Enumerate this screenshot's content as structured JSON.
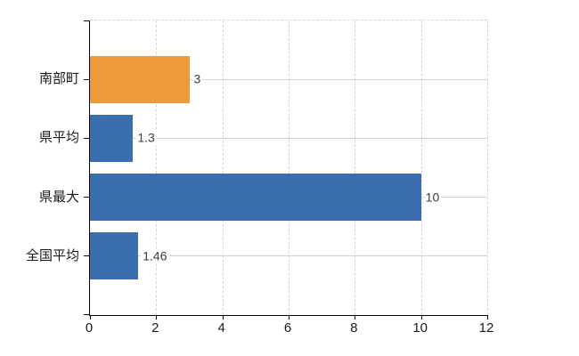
{
  "chart_data": {
    "type": "bar",
    "orientation": "horizontal",
    "title": "",
    "xlabel": "",
    "ylabel": "",
    "categories": [
      "南部町",
      "県平均",
      "県最大",
      "全国平均"
    ],
    "values": [
      3,
      1.3,
      10,
      1.46
    ],
    "value_labels": [
      "3",
      "1.3",
      "10",
      "1.46"
    ],
    "bar_colors": [
      "#EC9A3C",
      "#3B6EAE",
      "#3B6EAE",
      "#3B6EAE"
    ],
    "xlim": [
      0,
      12
    ],
    "x_ticks": [
      0,
      2,
      4,
      6,
      8,
      10,
      12
    ],
    "grid": {
      "vertical_gridlines": "dashed",
      "category_gridlines": "solid",
      "top_border": "dashed"
    },
    "legend": "none"
  },
  "style": {
    "background": "#FFFFFF",
    "axis_color": "#000000",
    "dashed_grid_color": "#D6D6D6",
    "category_grid_color": "#CFCFCF",
    "tick_label_color": "#1A1A1A",
    "value_label_color": "#3C3C3C",
    "bar_orange": "#EC9A3C",
    "bar_blue": "#3B6EAE"
  }
}
